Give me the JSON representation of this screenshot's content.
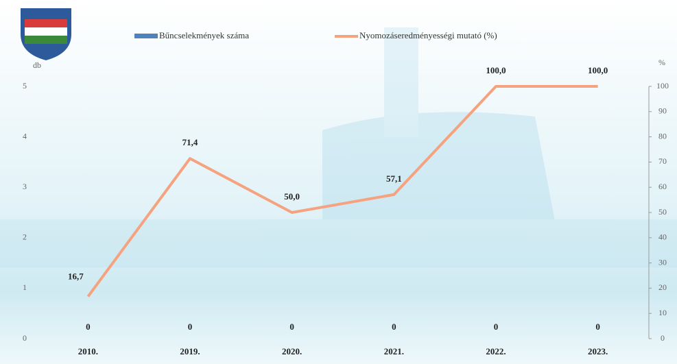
{
  "chart_data": {
    "type": "combo",
    "categories": [
      "2010.",
      "2019.",
      "2020.",
      "2021.",
      "2022.",
      "2023."
    ],
    "series": [
      {
        "name": "Bűncselekmények száma",
        "type": "bar",
        "color": "#4f81bd",
        "axis": "y",
        "values": [
          0,
          0,
          0,
          0,
          0,
          0
        ]
      },
      {
        "name": "Nyomozáseredményességi mutató (%)",
        "type": "line",
        "color": "#f5a37f",
        "axis": "y2",
        "values": [
          16.7,
          71.4,
          50.0,
          57.1,
          100.0,
          100.0
        ],
        "value_labels": [
          "16,7",
          "71,4",
          "50,0",
          "57,1",
          "100,0",
          "100,0"
        ]
      }
    ],
    "y_label": "db",
    "y2_label": "%",
    "ylim": [
      0,
      5
    ],
    "yticks": [
      0,
      1,
      2,
      3,
      4,
      5
    ],
    "y2lim": [
      0,
      100
    ],
    "y2ticks": [
      0,
      10,
      20,
      30,
      40,
      50,
      60,
      70,
      80,
      90,
      100
    ]
  }
}
